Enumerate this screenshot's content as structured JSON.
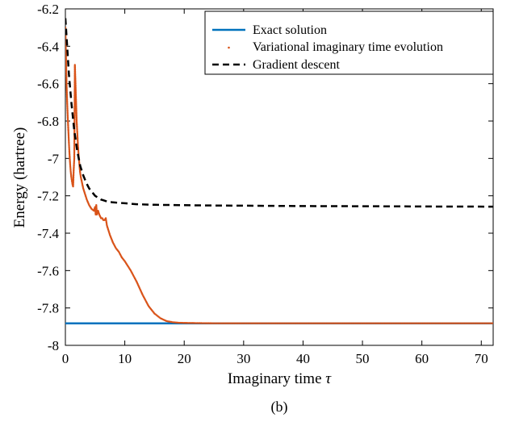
{
  "chart_data": {
    "type": "line",
    "caption": "(b)",
    "xlabel": "Imaginary time",
    "xlabel_symbol": "τ",
    "ylabel": "Energy (hartree)",
    "xlim": [
      0,
      72
    ],
    "ylim": [
      -8,
      -6.2
    ],
    "xticks": [
      0,
      10,
      20,
      30,
      40,
      50,
      60,
      70
    ],
    "xtick_labels": [
      "0",
      "10",
      "20",
      "30",
      "40",
      "50",
      "60",
      "70"
    ],
    "yticks": [
      -8,
      -7.8,
      -7.6,
      -7.4,
      -7.2,
      -7,
      -6.8,
      -6.6,
      -6.4,
      -6.2
    ],
    "ytick_labels": [
      "-8",
      "-7.8",
      "-7.6",
      "-7.4",
      "-7.2",
      "-7",
      "-6.8",
      "-6.6",
      "-6.4",
      "-6.2"
    ],
    "grid": false,
    "legend_position": "top-right",
    "series": [
      {
        "name": "Exact solution",
        "style": "solid",
        "color": "#0072BD",
        "x": [
          0,
          72
        ],
        "y": [
          -7.882,
          -7.882
        ]
      },
      {
        "name": "Variational imaginary time evolution",
        "style": "dotted",
        "color": "#D95319",
        "x": [
          0.0,
          0.1,
          0.2,
          0.3,
          0.4,
          0.5,
          0.6,
          0.7,
          0.8,
          0.9,
          1.0,
          1.1,
          1.2,
          1.3,
          1.4,
          1.5,
          1.6,
          1.7,
          1.8,
          1.9,
          2.0,
          2.1,
          2.2,
          2.3,
          2.4,
          2.5,
          2.6,
          2.8,
          3.0,
          3.3,
          3.6,
          4.0,
          4.4,
          4.8,
          5.0,
          5.1,
          5.2,
          5.3,
          5.5,
          5.7,
          6.0,
          6.2,
          6.4,
          6.6,
          6.8,
          7.0,
          7.5,
          8.0,
          8.5,
          9.0,
          9.5,
          10.0,
          11.0,
          12.0,
          13.0,
          14.0,
          15.0,
          16.0,
          17.0,
          18.0,
          19.0,
          20.0,
          22.0,
          25.0,
          30.0,
          40.0,
          50.0,
          60.0,
          72.0
        ],
        "y": [
          -6.3,
          -6.45,
          -6.6,
          -6.7,
          -6.78,
          -6.85,
          -6.92,
          -6.98,
          -7.03,
          -7.07,
          -7.1,
          -7.12,
          -7.14,
          -7.15,
          -7.06,
          -7.0,
          -6.5,
          -6.6,
          -6.7,
          -6.8,
          -6.86,
          -6.92,
          -6.97,
          -7.01,
          -7.05,
          -7.08,
          -7.1,
          -7.13,
          -7.16,
          -7.19,
          -7.22,
          -7.25,
          -7.27,
          -7.28,
          -7.26,
          -7.3,
          -7.25,
          -7.3,
          -7.28,
          -7.3,
          -7.32,
          -7.32,
          -7.33,
          -7.33,
          -7.32,
          -7.36,
          -7.41,
          -7.45,
          -7.48,
          -7.5,
          -7.53,
          -7.55,
          -7.6,
          -7.66,
          -7.73,
          -7.79,
          -7.83,
          -7.855,
          -7.87,
          -7.876,
          -7.879,
          -7.88,
          -7.881,
          -7.882,
          -7.882,
          -7.882,
          -7.882,
          -7.882,
          -7.882
        ]
      },
      {
        "name": "Gradient descent",
        "style": "dashed",
        "color": "#000000",
        "x": [
          0.0,
          0.3,
          0.6,
          1.0,
          1.5,
          2.0,
          2.5,
          3.0,
          3.5,
          4.0,
          5.0,
          6.0,
          7.0,
          8.0,
          10.0,
          12.0,
          15.0,
          20.0,
          25.0,
          30.0,
          40.0,
          50.0,
          60.0,
          72.0
        ],
        "y": [
          -6.25,
          -6.4,
          -6.55,
          -6.7,
          -6.85,
          -6.96,
          -7.04,
          -7.09,
          -7.13,
          -7.16,
          -7.2,
          -7.22,
          -7.23,
          -7.235,
          -7.24,
          -7.245,
          -7.248,
          -7.25,
          -7.252,
          -7.253,
          -7.255,
          -7.256,
          -7.257,
          -7.258
        ]
      }
    ]
  }
}
